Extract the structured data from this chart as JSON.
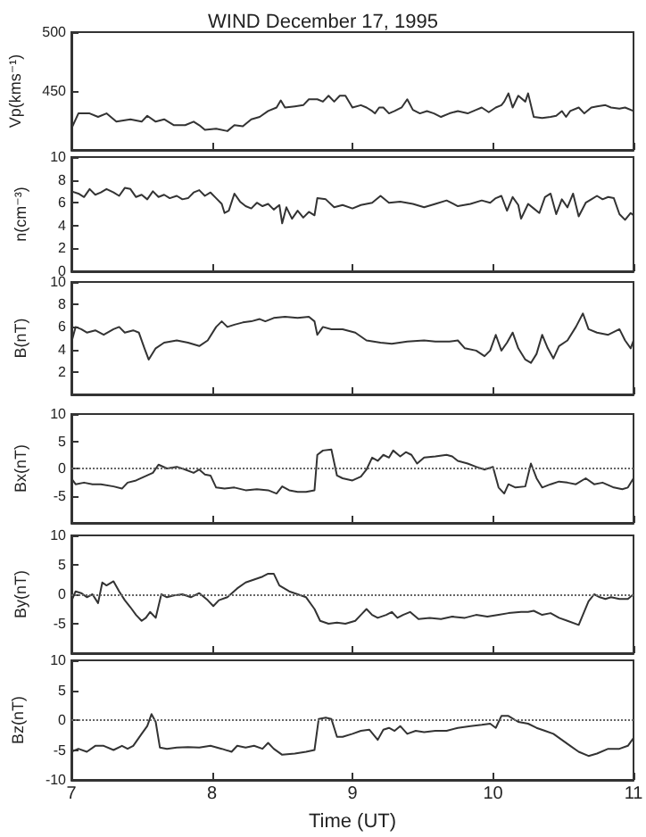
{
  "chart_data": [
    {
      "type": "line",
      "title": "WIND December 17, 1995",
      "ylabel": "Vp(kms⁻¹)",
      "xlim": [
        7,
        11
      ],
      "xticks": [
        7,
        8,
        9,
        10,
        11
      ],
      "ylim": [
        400,
        500
      ],
      "yticks": [
        450,
        500
      ],
      "tick_labels": "y",
      "x": [
        7.0,
        7.05,
        7.13,
        7.19,
        7.25,
        7.32,
        7.42,
        7.5,
        7.54,
        7.6,
        7.66,
        7.73,
        7.81,
        7.87,
        7.91,
        7.95,
        8.03,
        8.11,
        8.16,
        8.22,
        8.28,
        8.34,
        8.4,
        8.46,
        8.49,
        8.52,
        8.59,
        8.65,
        8.69,
        8.75,
        8.79,
        8.83,
        8.87,
        8.91,
        8.95,
        9.0,
        9.06,
        9.1,
        9.14,
        9.16,
        9.19,
        9.22,
        9.26,
        9.3,
        9.35,
        9.39,
        9.43,
        9.48,
        9.53,
        9.58,
        9.63,
        9.69,
        9.75,
        9.82,
        9.88,
        9.92,
        9.97,
        10.02,
        10.06,
        10.08,
        10.11,
        10.14,
        10.18,
        10.23,
        10.25,
        10.29,
        10.35,
        10.41,
        10.45,
        10.49,
        10.52,
        10.55,
        10.61,
        10.65,
        10.7,
        10.74,
        10.8,
        10.84,
        10.9,
        10.94,
        11.0
      ],
      "values": [
        418,
        431,
        431,
        428,
        431,
        424,
        426,
        424,
        429,
        424,
        426,
        421,
        421,
        424,
        421,
        417,
        418,
        416,
        421,
        420,
        426,
        428,
        433,
        436,
        442,
        436,
        437,
        438,
        443,
        443,
        441,
        446,
        441,
        446,
        446,
        436,
        438,
        436,
        433,
        431,
        436,
        436,
        431,
        433,
        436,
        443,
        434,
        431,
        433,
        431,
        428,
        431,
        433,
        431,
        434,
        436,
        432,
        436,
        438,
        441,
        448,
        436,
        446,
        441,
        448,
        428,
        427,
        428,
        429,
        433,
        428,
        433,
        436,
        431,
        436,
        437,
        438,
        436,
        435,
        436,
        433
      ],
      "color": "#333333"
    },
    {
      "type": "line",
      "ylabel": "n(cm⁻³)",
      "xlim": [
        7,
        11
      ],
      "xticks": [
        7,
        8,
        9,
        10,
        11
      ],
      "ylim": [
        0,
        10
      ],
      "yticks": [
        0,
        2,
        4,
        6,
        8,
        10
      ],
      "tick_labels": "y",
      "x": [
        7.0,
        7.05,
        7.09,
        7.13,
        7.17,
        7.21,
        7.25,
        7.3,
        7.34,
        7.38,
        7.42,
        7.46,
        7.5,
        7.54,
        7.58,
        7.62,
        7.66,
        7.7,
        7.75,
        7.79,
        7.83,
        7.87,
        7.91,
        7.95,
        7.99,
        8.03,
        8.07,
        8.09,
        8.12,
        8.16,
        8.2,
        8.24,
        8.28,
        8.32,
        8.36,
        8.4,
        8.44,
        8.48,
        8.5,
        8.53,
        8.57,
        8.61,
        8.65,
        8.69,
        8.73,
        8.75,
        8.81,
        8.87,
        8.93,
        9.0,
        9.06,
        9.14,
        9.2,
        9.26,
        9.34,
        9.43,
        9.51,
        9.59,
        9.67,
        9.75,
        9.84,
        9.92,
        9.98,
        10.02,
        10.06,
        10.1,
        10.14,
        10.18,
        10.2,
        10.25,
        10.29,
        10.33,
        10.37,
        10.41,
        10.45,
        10.49,
        10.53,
        10.57,
        10.61,
        10.66,
        10.7,
        10.74,
        10.78,
        10.82,
        10.86,
        10.9,
        10.94,
        10.98,
        11.0
      ],
      "values": [
        7.0,
        6.8,
        6.5,
        7.2,
        6.7,
        6.9,
        7.2,
        6.9,
        6.6,
        7.3,
        7.2,
        6.5,
        6.7,
        6.3,
        7.0,
        6.5,
        6.7,
        6.4,
        6.6,
        6.3,
        6.4,
        6.9,
        7.1,
        6.6,
        6.9,
        6.4,
        5.9,
        5.1,
        5.3,
        6.8,
        6.1,
        5.7,
        5.5,
        6.0,
        5.7,
        5.9,
        5.4,
        5.8,
        4.2,
        5.6,
        4.6,
        5.3,
        4.7,
        5.2,
        4.9,
        6.4,
        6.3,
        5.6,
        5.8,
        5.5,
        5.8,
        6.0,
        6.6,
        6.0,
        6.1,
        5.9,
        5.6,
        5.9,
        6.2,
        5.7,
        5.9,
        6.2,
        6.0,
        6.4,
        6.6,
        5.3,
        6.5,
        5.8,
        4.6,
        5.9,
        5.5,
        5.1,
        6.5,
        6.8,
        5.0,
        6.3,
        5.6,
        6.8,
        4.8,
        6.0,
        6.3,
        6.6,
        6.3,
        6.5,
        6.4,
        5.0,
        4.5,
        5.1,
        4.9
      ],
      "color": "#333333"
    },
    {
      "type": "line",
      "ylabel": "B(nT)",
      "xlim": [
        7,
        11
      ],
      "xticks": [
        7,
        8,
        9,
        10,
        11
      ],
      "ylim": [
        0,
        10
      ],
      "yticks": [
        2,
        4,
        6,
        8,
        10
      ],
      "tick_labels": "y",
      "x": [
        7.0,
        7.03,
        7.07,
        7.11,
        7.17,
        7.23,
        7.3,
        7.34,
        7.38,
        7.44,
        7.48,
        7.52,
        7.55,
        7.6,
        7.66,
        7.75,
        7.83,
        7.91,
        7.97,
        8.03,
        8.07,
        8.11,
        8.16,
        8.22,
        8.28,
        8.34,
        8.38,
        8.44,
        8.52,
        8.61,
        8.69,
        8.73,
        8.75,
        8.79,
        8.85,
        8.93,
        9.02,
        9.1,
        9.2,
        9.28,
        9.39,
        9.51,
        9.59,
        9.69,
        9.75,
        9.8,
        9.88,
        9.94,
        9.98,
        10.02,
        10.06,
        10.1,
        10.14,
        10.18,
        10.23,
        10.27,
        10.31,
        10.35,
        10.39,
        10.43,
        10.47,
        10.53,
        10.59,
        10.64,
        10.68,
        10.74,
        10.82,
        10.9,
        10.94,
        10.98,
        11.0
      ],
      "values": [
        4.6,
        6.0,
        5.8,
        5.5,
        5.7,
        5.3,
        5.8,
        6.0,
        5.5,
        5.7,
        5.5,
        4.1,
        3.1,
        4.1,
        4.6,
        4.8,
        4.6,
        4.3,
        4.8,
        6.0,
        6.5,
        6.0,
        6.2,
        6.4,
        6.5,
        6.7,
        6.5,
        6.8,
        6.9,
        6.8,
        6.9,
        6.5,
        5.3,
        6.0,
        5.8,
        5.8,
        5.5,
        4.8,
        4.6,
        4.5,
        4.7,
        4.8,
        4.7,
        4.7,
        4.8,
        4.1,
        3.9,
        3.4,
        3.9,
        5.3,
        3.9,
        4.6,
        5.5,
        4.1,
        3.1,
        2.8,
        3.6,
        5.3,
        4.1,
        3.2,
        4.3,
        4.8,
        6.0,
        7.2,
        5.8,
        5.5,
        5.3,
        5.8,
        4.8,
        4.1,
        4.8
      ],
      "color": "#333333"
    },
    {
      "type": "line",
      "ylabel": "Bx(nT)",
      "xlim": [
        7,
        11
      ],
      "xticks": [
        7,
        8,
        9,
        10,
        11
      ],
      "ylim": [
        -10,
        10
      ],
      "yticks": [
        -5,
        0,
        5,
        10
      ],
      "tick_labels": "y",
      "ref_lines": [
        {
          "axis": "y",
          "value": 0,
          "color": "#666666",
          "line_style": "dotted"
        }
      ],
      "x": [
        7.0,
        7.03,
        7.09,
        7.15,
        7.21,
        7.3,
        7.36,
        7.4,
        7.46,
        7.52,
        7.58,
        7.62,
        7.68,
        7.75,
        7.81,
        7.87,
        7.91,
        7.95,
        7.99,
        8.03,
        8.09,
        8.16,
        8.24,
        8.32,
        8.4,
        8.46,
        8.5,
        8.55,
        8.61,
        8.67,
        8.73,
        8.75,
        8.79,
        8.85,
        8.89,
        8.93,
        9.0,
        9.06,
        9.1,
        9.14,
        9.18,
        9.22,
        9.26,
        9.29,
        9.34,
        9.38,
        9.42,
        9.46,
        9.51,
        9.59,
        9.67,
        9.71,
        9.75,
        9.82,
        9.88,
        9.94,
        10.0,
        10.04,
        10.08,
        10.11,
        10.16,
        10.23,
        10.27,
        10.31,
        10.35,
        10.41,
        10.47,
        10.53,
        10.59,
        10.66,
        10.72,
        10.78,
        10.86,
        10.92,
        10.96,
        11.0
      ],
      "values": [
        -1.8,
        -2.9,
        -2.6,
        -2.9,
        -2.9,
        -3.3,
        -3.7,
        -2.6,
        -2.2,
        -1.5,
        -0.8,
        0.7,
        0,
        0.3,
        -0.2,
        -0.8,
        -0.2,
        -1.1,
        -1.3,
        -3.5,
        -3.7,
        -3.5,
        -4.0,
        -3.8,
        -4.0,
        -4.6,
        -3.3,
        -4.0,
        -4.3,
        -4.3,
        -4.0,
        2.5,
        3.3,
        3.5,
        -1.3,
        -1.8,
        -2.2,
        -1.5,
        -0.2,
        2.0,
        1.4,
        2.5,
        2.0,
        3.3,
        2.2,
        3.0,
        2.5,
        0.9,
        2.0,
        2.2,
        2.5,
        2.2,
        1.4,
        0.9,
        0.3,
        -0.2,
        0.3,
        -3.5,
        -4.6,
        -2.9,
        -3.5,
        -3.3,
        0.9,
        -1.8,
        -3.5,
        -2.9,
        -2.4,
        -2.6,
        -2.9,
        -1.8,
        -2.9,
        -2.6,
        -3.5,
        -3.8,
        -3.5,
        -1.8
      ],
      "color": "#333333"
    },
    {
      "type": "line",
      "ylabel": "By(nT)",
      "xlim": [
        7,
        11
      ],
      "xticks": [
        7,
        8,
        9,
        10,
        11
      ],
      "ylim": [
        -10,
        10
      ],
      "yticks": [
        -5,
        0,
        5,
        10
      ],
      "tick_labels": "y",
      "ref_lines": [
        {
          "axis": "y",
          "value": 0,
          "color": "#666666",
          "line_style": "dotted"
        }
      ],
      "x": [
        7.0,
        7.03,
        7.07,
        7.11,
        7.15,
        7.19,
        7.22,
        7.25,
        7.3,
        7.34,
        7.38,
        7.42,
        7.46,
        7.5,
        7.53,
        7.56,
        7.6,
        7.64,
        7.68,
        7.73,
        7.79,
        7.85,
        7.91,
        7.97,
        8.01,
        8.05,
        8.11,
        8.18,
        8.24,
        8.3,
        8.36,
        8.4,
        8.44,
        8.48,
        8.55,
        8.61,
        8.67,
        8.73,
        8.77,
        8.83,
        8.89,
        8.95,
        9.02,
        9.06,
        9.1,
        9.14,
        9.18,
        9.24,
        9.28,
        9.32,
        9.36,
        9.41,
        9.47,
        9.55,
        9.63,
        9.71,
        9.8,
        9.88,
        9.96,
        10.04,
        10.11,
        10.2,
        10.25,
        10.29,
        10.35,
        10.41,
        10.47,
        10.53,
        10.61,
        10.68,
        10.72,
        10.76,
        10.8,
        10.84,
        10.9,
        10.96,
        11.0
      ],
      "values": [
        -1.2,
        0.5,
        0.2,
        -0.5,
        0,
        -1.5,
        2.0,
        1.5,
        2.2,
        0.5,
        -1.0,
        -2.2,
        -3.5,
        -4.5,
        -4.0,
        -3.0,
        -4.0,
        0,
        -0.5,
        -0.2,
        0,
        -0.5,
        0.2,
        -1.0,
        -2.0,
        -1.0,
        -0.5,
        1.0,
        2.0,
        2.5,
        3.0,
        3.5,
        3.5,
        1.5,
        0.5,
        0,
        -0.5,
        -2.5,
        -4.5,
        -5.0,
        -4.8,
        -5.0,
        -4.5,
        -3.5,
        -2.5,
        -3.5,
        -4.0,
        -3.5,
        -3.0,
        -4.0,
        -3.5,
        -3.0,
        -4.2,
        -4.0,
        -4.2,
        -3.8,
        -4.0,
        -3.5,
        -3.8,
        -3.5,
        -3.2,
        -3.0,
        -3.0,
        -2.8,
        -3.5,
        -3.2,
        -4.0,
        -4.5,
        -5.2,
        -1.2,
        0,
        -0.5,
        -0.8,
        -0.5,
        -0.8,
        -0.8,
        0
      ],
      "color": "#333333"
    },
    {
      "type": "line",
      "ylabel": "Bz(nT)",
      "xlabel": "Time (UT)",
      "xlim": [
        7,
        11
      ],
      "xticks": [
        7,
        8,
        9,
        10,
        11
      ],
      "ylim": [
        -10,
        10
      ],
      "yticks": [
        -10,
        -5,
        0,
        5,
        10
      ],
      "ref_lines": [
        {
          "axis": "y",
          "value": 0,
          "color": "#666666",
          "line_style": "dotted"
        }
      ],
      "x": [
        7.0,
        7.05,
        7.11,
        7.17,
        7.23,
        7.3,
        7.36,
        7.4,
        7.44,
        7.5,
        7.54,
        7.57,
        7.6,
        7.63,
        7.68,
        7.75,
        7.83,
        7.91,
        7.99,
        8.07,
        8.14,
        8.18,
        8.24,
        8.3,
        8.36,
        8.4,
        8.44,
        8.5,
        8.59,
        8.67,
        8.73,
        8.76,
        8.81,
        8.85,
        8.89,
        8.93,
        9.0,
        9.06,
        9.12,
        9.18,
        9.22,
        9.26,
        9.3,
        9.34,
        9.39,
        9.45,
        9.51,
        9.59,
        9.67,
        9.75,
        9.84,
        9.92,
        9.98,
        10.02,
        10.06,
        10.11,
        10.18,
        10.25,
        10.31,
        10.37,
        10.43,
        10.49,
        10.55,
        10.61,
        10.68,
        10.74,
        10.82,
        10.9,
        10.96,
        11.0
      ],
      "values": [
        -5.3,
        -4.8,
        -5.3,
        -4.3,
        -4.3,
        -5.0,
        -4.3,
        -4.8,
        -4.3,
        -2.3,
        -1.0,
        1.0,
        -0.3,
        -4.6,
        -4.8,
        -4.6,
        -4.5,
        -4.6,
        -4.3,
        -4.8,
        -5.3,
        -4.3,
        -4.6,
        -4.3,
        -4.8,
        -3.8,
        -4.8,
        -5.8,
        -5.6,
        -5.3,
        -5.0,
        0.2,
        0.4,
        0.2,
        -2.8,
        -2.8,
        -2.3,
        -1.8,
        -1.6,
        -3.3,
        -1.6,
        -1.3,
        -1.8,
        -1.0,
        -2.3,
        -1.8,
        -2.0,
        -1.8,
        -1.8,
        -1.3,
        -1.0,
        -0.8,
        -0.6,
        -1.3,
        0.7,
        0.7,
        -0.3,
        -0.6,
        -1.3,
        -1.8,
        -2.3,
        -3.3,
        -4.3,
        -5.3,
        -6.0,
        -5.6,
        -4.8,
        -4.8,
        -4.3,
        -3.0
      ],
      "color": "#333333"
    }
  ]
}
